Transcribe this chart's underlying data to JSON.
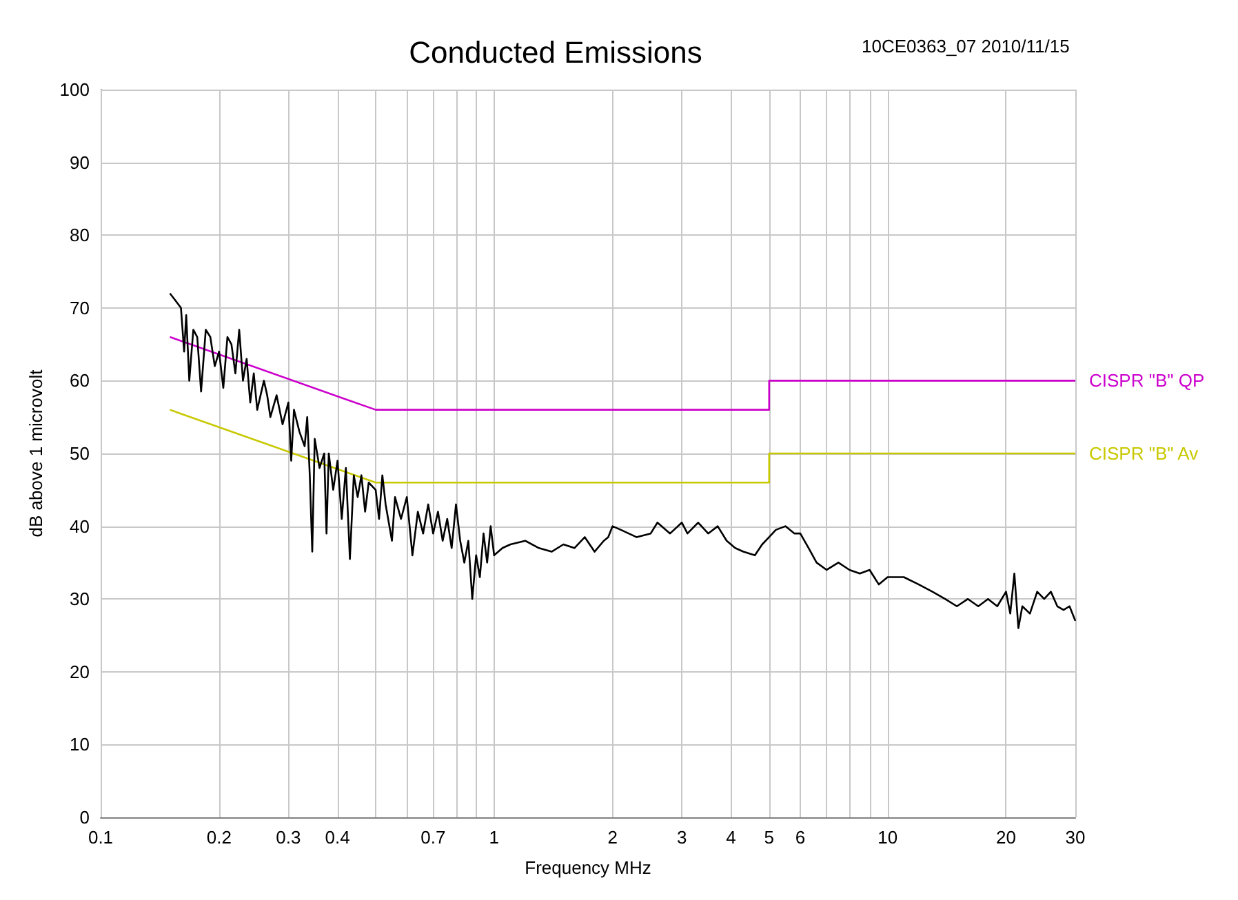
{
  "chart_data": {
    "type": "line",
    "title": "Conducted Emissions",
    "subtitle": "10CE0363_07 2010/11/15",
    "xlabel": "Frequency MHz",
    "ylabel": "dB above 1 microvolt",
    "log": "x",
    "grid": true,
    "xlim": [
      0.1,
      30
    ],
    "ylim": [
      0,
      100
    ],
    "yticks": [
      0,
      10,
      20,
      30,
      40,
      50,
      60,
      70,
      80,
      90,
      100
    ],
    "xticks": [
      0.1,
      0.2,
      0.3,
      0.4,
      {
        "value": 0.5,
        "label": null
      },
      {
        "value": 0.6,
        "label": null
      },
      0.7,
      {
        "value": 0.8,
        "label": null
      },
      {
        "value": 0.9,
        "label": null
      },
      1,
      2,
      3,
      4,
      5,
      6,
      {
        "value": 7,
        "label": null
      },
      {
        "value": 8,
        "label": null
      },
      {
        "value": 9,
        "label": null
      },
      10,
      20,
      30
    ],
    "series": [
      {
        "color": "#000000",
        "x": [
          0.15,
          0.155,
          0.16,
          0.163,
          0.165,
          0.168,
          0.172,
          0.176,
          0.18,
          0.185,
          0.19,
          0.195,
          0.2,
          0.205,
          0.21,
          0.215,
          0.22,
          0.225,
          0.23,
          0.235,
          0.24,
          0.245,
          0.25,
          0.26,
          0.265,
          0.27,
          0.28,
          0.29,
          0.3,
          0.305,
          0.31,
          0.32,
          0.33,
          0.335,
          0.34,
          0.345,
          0.35,
          0.36,
          0.37,
          0.375,
          0.38,
          0.39,
          0.4,
          0.41,
          0.42,
          0.43,
          0.44,
          0.45,
          0.46,
          0.47,
          0.48,
          0.5,
          0.51,
          0.52,
          0.53,
          0.55,
          0.56,
          0.58,
          0.6,
          0.62,
          0.64,
          0.66,
          0.68,
          0.7,
          0.72,
          0.74,
          0.76,
          0.78,
          0.8,
          0.82,
          0.84,
          0.86,
          0.88,
          0.9,
          0.92,
          0.94,
          0.96,
          0.98,
          1.0,
          1.05,
          1.1,
          1.2,
          1.3,
          1.4,
          1.5,
          1.6,
          1.7,
          1.8,
          1.9,
          1.95,
          2.0,
          2.1,
          2.3,
          2.5,
          2.6,
          2.8,
          3.0,
          3.1,
          3.3,
          3.5,
          3.7,
          3.9,
          4.1,
          4.3,
          4.6,
          4.8,
          5.0,
          5.2,
          5.5,
          5.8,
          6.0,
          6.3,
          6.6,
          7.0,
          7.5,
          8.0,
          8.5,
          9.0,
          9.5,
          10,
          11,
          12,
          13,
          14,
          15,
          16,
          17,
          18,
          19,
          20,
          20.5,
          21,
          21.5,
          22,
          23,
          24,
          25,
          26,
          27,
          28,
          29,
          30
        ],
        "values": [
          72,
          71,
          70,
          64,
          69,
          60,
          67,
          66,
          58.5,
          67,
          66,
          62,
          64,
          59,
          66,
          65,
          61,
          67,
          60,
          63,
          57,
          61,
          56,
          60,
          58,
          55,
          58,
          54,
          57,
          49,
          56,
          53,
          51,
          55,
          47,
          36.5,
          52,
          48,
          50,
          39,
          50,
          45,
          49,
          41,
          48,
          35.5,
          47,
          44,
          47,
          42,
          46,
          45,
          41,
          47,
          43,
          38,
          44,
          41,
          44,
          36,
          42,
          39,
          43,
          39,
          42,
          38,
          41,
          37,
          43,
          38,
          35,
          38,
          30,
          36,
          33,
          39,
          35,
          40,
          36,
          37,
          37.5,
          38,
          37,
          36.5,
          37.5,
          37,
          38.5,
          36.5,
          38,
          38.5,
          40,
          39.5,
          38.5,
          39,
          40.5,
          39,
          40.5,
          39,
          40.5,
          39,
          40,
          38,
          37,
          36.5,
          36,
          37.5,
          38.5,
          39.5,
          40,
          39,
          39,
          37,
          35,
          34,
          35,
          34,
          33.5,
          34,
          32,
          33,
          33,
          32,
          31,
          30,
          29,
          30,
          29,
          30,
          29,
          31,
          28,
          33.5,
          26,
          29,
          28,
          31,
          30,
          31,
          29,
          28.5,
          29,
          27
        ]
      },
      {
        "name": "CISPR \"B\" QP",
        "color": "#cc00cc",
        "x": [
          0.15,
          0.5,
          5,
          5,
          30
        ],
        "values": [
          66,
          56,
          56,
          60,
          60
        ]
      },
      {
        "name": "CISPR \"B\" Av",
        "color": "#c8c800",
        "x": [
          0.15,
          0.5,
          5,
          5,
          30
        ],
        "values": [
          56,
          46,
          46,
          50,
          50
        ]
      }
    ]
  }
}
